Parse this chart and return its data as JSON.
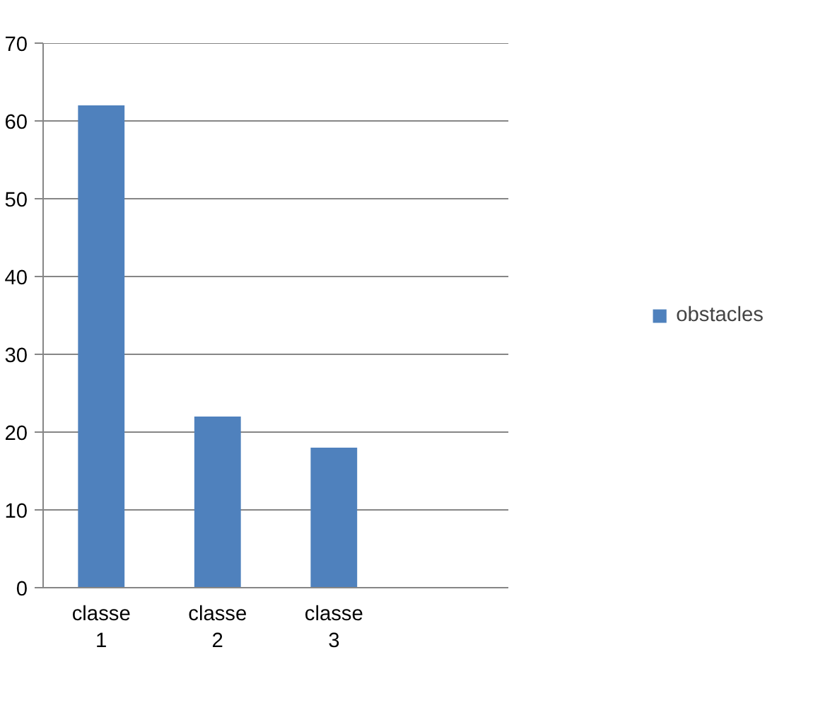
{
  "chart_data": {
    "type": "bar",
    "categories": [
      "classe 1",
      "classe 2",
      "classe 3",
      null
    ],
    "series": [
      {
        "name": "obstacles",
        "color": "#4f81bd",
        "values": [
          62,
          22,
          18,
          null
        ]
      }
    ],
    "ylim": [
      0,
      70
    ],
    "yticks": [
      0,
      10,
      20,
      30,
      40,
      50,
      60,
      70
    ],
    "grid": "y",
    "legend": "right"
  }
}
